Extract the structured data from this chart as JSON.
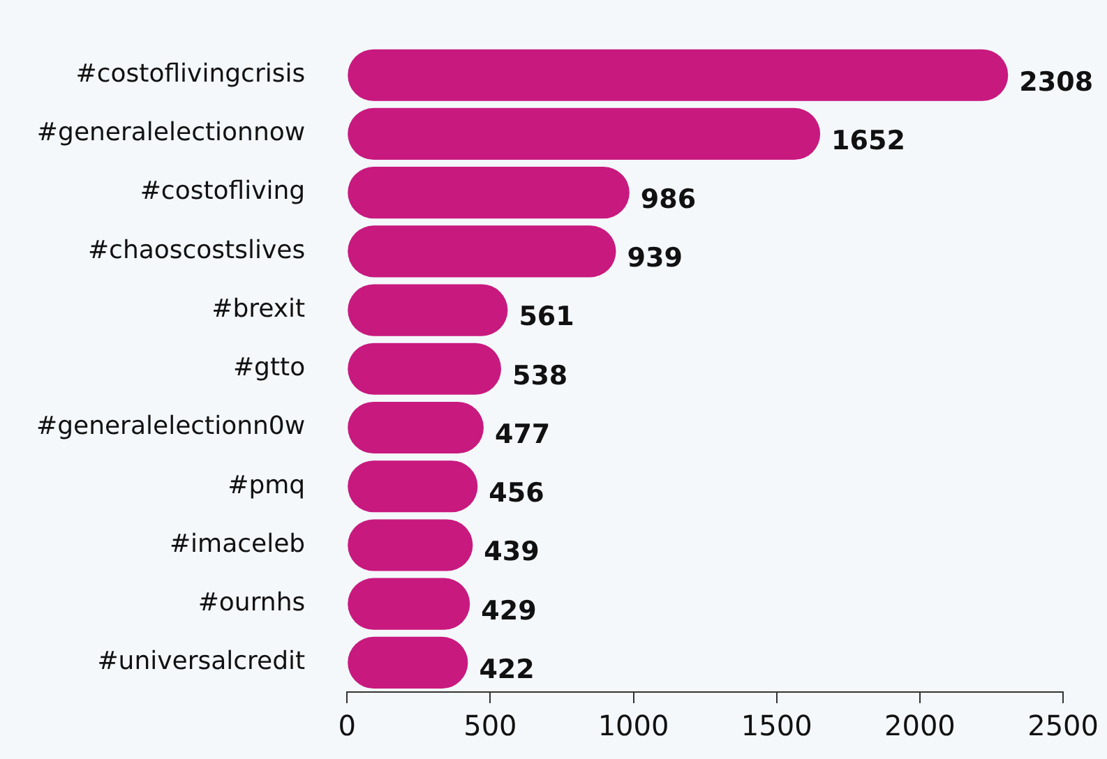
{
  "chart_data": {
    "type": "bar",
    "orientation": "horizontal",
    "categories": [
      "#costoflivingcrisis",
      "#generalelectionnow",
      "#costofliving",
      "#chaoscostslives",
      "#brexit",
      "#gtto",
      "#generalelectionn0w",
      "#pmq",
      "#imaceleb",
      "#ournhs",
      "#universalcredit"
    ],
    "values": [
      2308,
      1652,
      986,
      939,
      561,
      538,
      477,
      456,
      439,
      429,
      422
    ],
    "color": "#c8197f",
    "data_labels": true,
    "grid": false,
    "legend": false,
    "xlim": [
      0,
      2500
    ],
    "xticks": [
      0,
      500,
      1000,
      1500,
      2000,
      2500
    ]
  }
}
